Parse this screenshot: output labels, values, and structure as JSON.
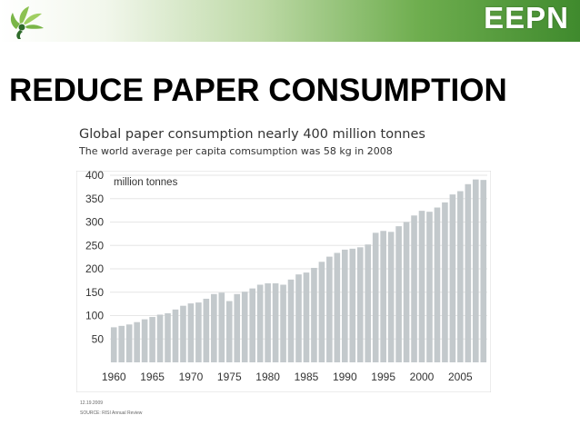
{
  "header": {
    "brand": "EEPN",
    "logo_icon": "leaf-figure-logo-icon",
    "band_color": "#3f8a2d",
    "accent_light": "#bdd9a6"
  },
  "page": {
    "title": "REDUCE PAPER CONSUMPTION"
  },
  "chart_data": {
    "type": "bar",
    "title": "Global paper consumption nearly 400 million tonnes",
    "subtitle": "The world average per capita comsumption was 58 kg in 2008",
    "ylabel": "million tonnes",
    "xlabel": "",
    "ylim": [
      0,
      400
    ],
    "grid": true,
    "bar_color": "#c3c9cc",
    "x_ticks": [
      "1960",
      "1965",
      "1970",
      "1975",
      "1980",
      "1985",
      "1990",
      "1995",
      "2000",
      "2005"
    ],
    "y_ticks": [
      50,
      100,
      150,
      200,
      250,
      300,
      350,
      400
    ],
    "categories": [
      "1960",
      "1961",
      "1962",
      "1963",
      "1964",
      "1965",
      "1966",
      "1967",
      "1968",
      "1969",
      "1970",
      "1971",
      "1972",
      "1973",
      "1974",
      "1975",
      "1976",
      "1977",
      "1978",
      "1979",
      "1980",
      "1981",
      "1982",
      "1983",
      "1984",
      "1985",
      "1986",
      "1987",
      "1988",
      "1989",
      "1990",
      "1991",
      "1992",
      "1993",
      "1994",
      "1995",
      "1996",
      "1997",
      "1998",
      "1999",
      "2000",
      "2001",
      "2002",
      "2003",
      "2004",
      "2005",
      "2006",
      "2007",
      "2008"
    ],
    "values": [
      75,
      78,
      81,
      86,
      92,
      97,
      102,
      105,
      113,
      121,
      126,
      128,
      136,
      146,
      149,
      131,
      146,
      151,
      158,
      166,
      169,
      169,
      166,
      177,
      188,
      192,
      202,
      215,
      226,
      234,
      241,
      243,
      246,
      252,
      277,
      281,
      279,
      291,
      300,
      314,
      324,
      322,
      331,
      342,
      359,
      366,
      381,
      391,
      390
    ]
  },
  "footnotes": {
    "date": "12.19.2009",
    "source": "SOURCE: RISI Annual Review"
  }
}
